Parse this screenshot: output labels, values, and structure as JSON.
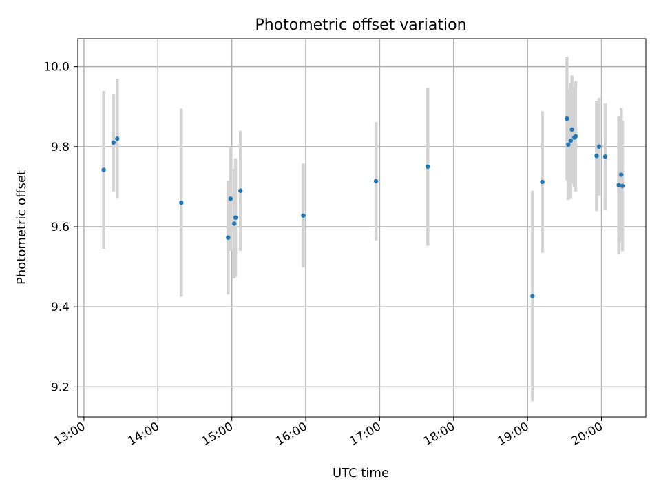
{
  "chart_data": {
    "type": "scatter",
    "title": "Photometric offset variation",
    "xlabel": "UTC time",
    "ylabel": "Photometric offset",
    "xlim": [
      "12:55",
      "20:36"
    ],
    "ylim": [
      9.125,
      10.07
    ],
    "grid": true,
    "x_ticks": [
      "13:00",
      "14:00",
      "15:00",
      "16:00",
      "17:00",
      "18:00",
      "19:00",
      "20:00"
    ],
    "y_ticks": [
      "9.2",
      "9.4",
      "9.6",
      "9.8",
      "10.0"
    ],
    "marker_color": "#1f77b4",
    "errorbar_color": "#d3d3d3",
    "points": [
      {
        "x": "13:16",
        "y": 9.742,
        "err": 0.197
      },
      {
        "x": "13:24",
        "y": 9.81,
        "err": 0.122
      },
      {
        "x": "13:27",
        "y": 9.82,
        "err": 0.15
      },
      {
        "x": "14:19",
        "y": 9.66,
        "err": 0.235
      },
      {
        "x": "14:57",
        "y": 9.573,
        "err": 0.142
      },
      {
        "x": "14:59",
        "y": 9.67,
        "err": 0.13
      },
      {
        "x": "15:02",
        "y": 9.608,
        "err": 0.137
      },
      {
        "x": "15:03",
        "y": 9.623,
        "err": 0.148
      },
      {
        "x": "15:07",
        "y": 9.69,
        "err": 0.15
      },
      {
        "x": "15:58",
        "y": 9.628,
        "err": 0.13
      },
      {
        "x": "16:57",
        "y": 9.714,
        "err": 0.148
      },
      {
        "x": "17:39",
        "y": 9.75,
        "err": 0.197
      },
      {
        "x": "19:04",
        "y": 9.427,
        "err": 0.263
      },
      {
        "x": "19:12",
        "y": 9.712,
        "err": 0.177
      },
      {
        "x": "19:32",
        "y": 9.87,
        "err": 0.155
      },
      {
        "x": "19:33",
        "y": 9.805,
        "err": 0.138
      },
      {
        "x": "19:35",
        "y": 9.815,
        "err": 0.145
      },
      {
        "x": "19:36",
        "y": 9.843,
        "err": 0.135
      },
      {
        "x": "19:38",
        "y": 9.823,
        "err": 0.125
      },
      {
        "x": "19:39",
        "y": 9.826,
        "err": 0.138
      },
      {
        "x": "19:56",
        "y": 9.777,
        "err": 0.138
      },
      {
        "x": "19:58",
        "y": 9.8,
        "err": 0.122
      },
      {
        "x": "20:03",
        "y": 9.775,
        "err": 0.133
      },
      {
        "x": "20:14",
        "y": 9.704,
        "err": 0.172
      },
      {
        "x": "20:16",
        "y": 9.73,
        "err": 0.167
      },
      {
        "x": "20:17",
        "y": 9.702,
        "err": 0.163
      }
    ]
  }
}
